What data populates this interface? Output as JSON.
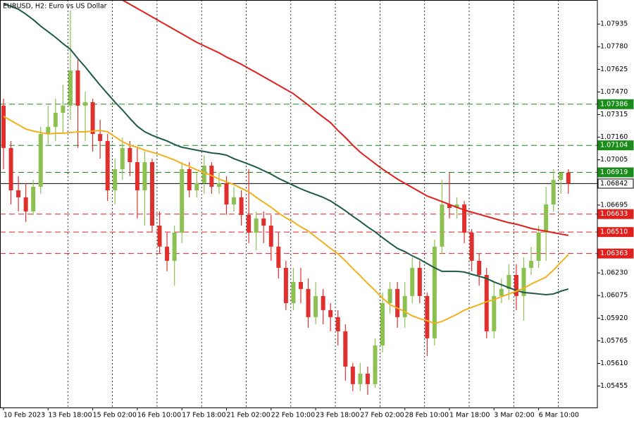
{
  "chart_data": {
    "type": "candlestick",
    "title": "EURUSD, H2:  Euro vs US Dollar",
    "categories": [
      "10 Feb 2023",
      null,
      null,
      null,
      null,
      null,
      "13 Feb 18:00",
      null,
      null,
      null,
      null,
      null,
      "15 Feb 02:00",
      null,
      null,
      null,
      null,
      null,
      "16 Feb 10:00",
      null,
      null,
      null,
      null,
      null,
      "17 Feb 18:00",
      null,
      null,
      null,
      null,
      null,
      "21 Feb 02:00",
      null,
      null,
      null,
      null,
      null,
      "22 Feb 10:00",
      null,
      null,
      null,
      null,
      null,
      "23 Feb 18:00",
      null,
      null,
      null,
      null,
      null,
      "27 Feb 02:00",
      null,
      null,
      null,
      null,
      null,
      "28 Feb 10:00",
      null,
      null,
      null,
      null,
      null,
      "1 Mar 18:00",
      null,
      null,
      null,
      null,
      null,
      "3 Mar 02:00",
      null,
      null,
      null,
      null,
      null,
      "6 Mar 10:00",
      null,
      null,
      null,
      null
    ],
    "open": [
      1.07376,
      1.07086,
      1.06796,
      1.06748,
      1.06651,
      1.0682,
      1.07182,
      1.07231,
      1.07327,
      1.07376,
      1.07617,
      1.07376,
      1.074,
      1.07182,
      1.07134,
      1.06796,
      1.06941,
      1.07086,
      1.06989,
      1.06796,
      1.06989,
      1.06554,
      1.0641,
      1.06313,
      1.06506,
      1.06941,
      1.06796,
      1.06844,
      1.06965,
      1.0682,
      1.06844,
      1.06699,
      1.06748,
      1.06627,
      1.06506,
      1.06603,
      1.06554,
      1.0641,
      1.06265,
      1.06023,
      1.06168,
      1.0612,
      1.05927,
      1.06072,
      1.05975,
      1.05927,
      1.0583,
      1.05588,
      1.05468,
      1.0554,
      1.05468,
      1.05733,
      1.06023,
      1.0612,
      1.05927,
      1.06072,
      1.06265,
      1.06072,
      1.05782,
      1.0641,
      1.06699,
      1.06675,
      1.06699,
      1.06506,
      1.06313,
      1.06216,
      1.0583,
      1.06072,
      1.0612,
      1.06216,
      1.06072,
      1.06265,
      1.06313,
      1.06506,
      1.06699,
      1.06868,
      1.06917
    ],
    "high": [
      1.07424,
      1.07134,
      1.06893,
      1.06844,
      1.06868,
      1.07231,
      1.07376,
      1.07424,
      1.0752,
      1.08028,
      1.07689,
      1.07472,
      1.07424,
      1.07279,
      1.07182,
      1.07013,
      1.07158,
      1.07134,
      1.07086,
      1.07062,
      1.07013,
      1.06651,
      1.06506,
      1.06554,
      1.06989,
      1.06989,
      1.06917,
      1.07037,
      1.06989,
      1.06917,
      1.06893,
      1.0682,
      1.06796,
      1.06941,
      1.06651,
      1.06651,
      1.06627,
      1.06506,
      1.06313,
      1.06265,
      1.06265,
      1.06192,
      1.06168,
      1.0612,
      1.06023,
      1.05975,
      1.05878,
      1.05613,
      1.05613,
      1.05588,
      1.05782,
      1.06096,
      1.06168,
      1.06168,
      1.06168,
      1.06337,
      1.06313,
      1.06096,
      1.06458,
      1.06868,
      1.06917,
      1.06748,
      1.06723,
      1.0653,
      1.06361,
      1.06265,
      1.06168,
      1.06192,
      1.06289,
      1.06289,
      1.06337,
      1.0641,
      1.06554,
      1.0682,
      1.06941,
      1.06917,
      1.06941
    ],
    "low": [
      1.06941,
      1.06699,
      1.06651,
      1.06579,
      1.06627,
      1.06772,
      1.0711,
      1.07134,
      1.07182,
      1.07279,
      1.07086,
      1.07134,
      1.07062,
      1.07013,
      1.06723,
      1.06699,
      1.06868,
      1.06893,
      1.06603,
      1.06554,
      1.06506,
      1.06361,
      1.06241,
      1.06144,
      1.06434,
      1.06748,
      1.06748,
      1.06772,
      1.06772,
      1.06772,
      1.06627,
      1.06651,
      1.06554,
      1.06434,
      1.06385,
      1.06434,
      1.06313,
      1.06192,
      1.05975,
      1.05975,
      1.06023,
      1.05854,
      1.05878,
      1.05878,
      1.0583,
      1.05733,
      1.05492,
      1.0542,
      1.0542,
      1.05395,
      1.05444,
      1.05685,
      1.05951,
      1.05854,
      1.05854,
      1.06023,
      1.06023,
      1.05661,
      1.05733,
      1.06361,
      1.06603,
      1.06603,
      1.06434,
      1.06241,
      1.06144,
      1.05782,
      1.05782,
      1.06023,
      1.06047,
      1.05975,
      1.05903,
      1.06216,
      1.06265,
      1.06313,
      1.06651,
      1.06772,
      1.06772
    ],
    "close": [
      1.07086,
      1.06796,
      1.06748,
      1.06651,
      1.0682,
      1.07182,
      1.07231,
      1.07327,
      1.07376,
      1.07617,
      1.07376,
      1.074,
      1.07182,
      1.07134,
      1.06796,
      1.06941,
      1.07086,
      1.06989,
      1.06796,
      1.06989,
      1.06554,
      1.0641,
      1.06313,
      1.06506,
      1.06941,
      1.06796,
      1.06844,
      1.06965,
      1.0682,
      1.06844,
      1.06699,
      1.06748,
      1.06627,
      1.06506,
      1.06603,
      1.06554,
      1.0641,
      1.06265,
      1.06023,
      1.06168,
      1.0612,
      1.05927,
      1.06072,
      1.05975,
      1.05927,
      1.0583,
      1.05588,
      1.05468,
      1.0554,
      1.05468,
      1.05733,
      1.06023,
      1.0612,
      1.05927,
      1.06072,
      1.06265,
      1.06072,
      1.05782,
      1.0641,
      1.06699,
      1.06675,
      1.06699,
      1.06506,
      1.06313,
      1.06216,
      1.0583,
      1.06072,
      1.0612,
      1.06216,
      1.06072,
      1.06265,
      1.06313,
      1.06506,
      1.06699,
      1.06868,
      1.06917,
      1.06842
    ],
    "up_color": "#8cc152",
    "down_color": "#e0302e",
    "series": [
      {
        "color": "#e0201c",
        "values": [
          null,
          null,
          null,
          null,
          null,
          null,
          null,
          null,
          null,
          null,
          null,
          null,
          null,
          null,
          null,
          null,
          1.081,
          1.08071,
          1.08042,
          1.08013,
          1.07984,
          1.07955,
          1.07926,
          1.07897,
          1.07868,
          1.07839,
          1.0781,
          1.07786,
          1.07762,
          1.07738,
          1.07709,
          1.07685,
          1.0766,
          1.07631,
          1.07603,
          1.07574,
          1.07545,
          1.07516,
          1.07487,
          1.07458,
          1.07419,
          1.07381,
          1.07337,
          1.07298,
          1.0726,
          1.07206,
          1.07158,
          1.07105,
          1.07057,
          1.07018,
          1.06979,
          1.06941,
          1.06907,
          1.06873,
          1.06844,
          1.06815,
          1.06786,
          1.06757,
          1.06738,
          1.06719,
          1.06699,
          1.0668,
          1.06661,
          1.06646,
          1.06632,
          1.06617,
          1.06603,
          1.06588,
          1.06574,
          1.06564,
          1.0655,
          1.06535,
          1.06525,
          1.06516,
          1.06506,
          1.06496,
          1.06487
        ]
      },
      {
        "color": "#1f5a48",
        "values": [
          1.08076,
          1.08057,
          1.08037,
          1.08003,
          1.07965,
          1.07921,
          1.07883,
          1.07844,
          1.07801,
          1.07762,
          1.07699,
          1.07641,
          1.07578,
          1.07516,
          1.07458,
          1.074,
          1.07347,
          1.07289,
          1.07235,
          1.07197,
          1.07173,
          1.07153,
          1.07134,
          1.0711,
          1.07091,
          1.07081,
          1.07071,
          1.07062,
          1.07052,
          1.07047,
          1.07037,
          1.07013,
          1.06994,
          1.06975,
          1.06955,
          1.06931,
          1.06907,
          1.06878,
          1.06854,
          1.0683,
          1.06806,
          1.06786,
          1.06767,
          1.06748,
          1.06723,
          1.0669,
          1.06656,
          1.06618,
          1.06583,
          1.06545,
          1.06511,
          1.06472,
          1.06434,
          1.06398,
          1.06376,
          1.06347,
          1.06323,
          1.06294,
          1.06265,
          1.06241,
          1.06241,
          1.06241,
          1.06236,
          1.06221,
          1.06207,
          1.06192,
          1.06168,
          1.06149,
          1.06129,
          1.0611,
          1.06096,
          1.06091,
          1.06086,
          1.06081,
          1.06086,
          1.06105,
          1.0612
        ]
      },
      {
        "color": "#f2b01e",
        "values": [
          1.07303,
          1.07274,
          1.07245,
          1.07216,
          1.07202,
          1.07192,
          1.07182,
          1.07187,
          1.07187,
          1.07192,
          1.07197,
          1.07197,
          1.07202,
          1.07206,
          1.07197,
          1.07163,
          1.07129,
          1.07105,
          1.07091,
          1.07071,
          1.07057,
          1.07042,
          1.07023,
          1.07004,
          1.06979,
          1.0696,
          1.06936,
          1.06917,
          1.06897,
          1.06873,
          1.06854,
          1.06835,
          1.0681,
          1.06786,
          1.06748,
          1.06714,
          1.0668,
          1.06641,
          1.06607,
          1.06579,
          1.06545,
          1.06518,
          1.06477,
          1.06438,
          1.06398,
          1.06361,
          1.06313,
          1.0626,
          1.06211,
          1.06158,
          1.0611,
          1.06057,
          1.06013,
          1.05989,
          1.05965,
          1.05936,
          1.05917,
          1.05903,
          1.05883,
          1.05898,
          1.05922,
          1.05946,
          1.05975,
          1.05994,
          1.06013,
          1.06033,
          1.06047,
          1.06067,
          1.06086,
          1.06105,
          1.06125,
          1.06154,
          1.06178,
          1.06202,
          1.0625,
          1.06303,
          1.06356
        ]
      }
    ],
    "levels": [
      {
        "value": 1.07386,
        "label": "1.07386",
        "color": "#1a8c1a",
        "style": "dashed"
      },
      {
        "value": 1.07104,
        "label": "1.07104",
        "color": "#1a8c1a",
        "style": "dashed"
      },
      {
        "value": 1.06919,
        "label": "1.06919",
        "color": "#1a8c1a",
        "style": "dashed"
      },
      {
        "value": 1.06842,
        "label": "1.06842",
        "color": "#000000",
        "style": "solid"
      },
      {
        "value": 1.06633,
        "label": "1.06633",
        "color": "#e0201c",
        "style": "dashed"
      },
      {
        "value": 1.0651,
        "label": "1.06510",
        "color": "#e0201c",
        "style": "dashed"
      },
      {
        "value": 1.06363,
        "label": "1.06363",
        "color": "#e0201c",
        "style": "dashed"
      }
    ],
    "ylim": [
      1.05308,
      1.081
    ],
    "yticks": [
      1.05455,
      {
        "value": 1.0561,
        "label": "1.05610"
      },
      1.05765,
      {
        "value": 1.0592,
        "label": "1.05920"
      },
      1.06075,
      {
        "value": 1.0623,
        "label": "1.06230"
      },
      1.06695,
      1.07005,
      {
        "value": 1.0716,
        "label": "1.07160"
      },
      1.07315,
      {
        "value": 1.0747,
        "label": "1.07470"
      },
      1.07625,
      {
        "value": 1.0778,
        "label": "1.07780"
      },
      1.07935
    ],
    "grid": true
  }
}
